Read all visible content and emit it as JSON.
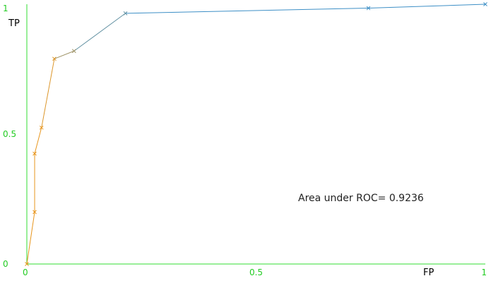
{
  "colors": {
    "axis": "#33dd33",
    "tick_text": "#22cc22",
    "series_low": "#e8961e",
    "series_high": "#3d8fc6",
    "background": "#ffffff"
  },
  "chart_data": {
    "type": "line",
    "xlabel": "FP",
    "ylabel": "TP",
    "xlim": [
      0,
      1
    ],
    "ylim": [
      0,
      1
    ],
    "x_ticks": [
      {
        "value": 0,
        "label": "0"
      },
      {
        "value": 0.5,
        "label": "0.5"
      },
      {
        "value": 1,
        "label": "1"
      }
    ],
    "y_ticks": [
      {
        "value": 0,
        "label": "0"
      },
      {
        "value": 0.5,
        "label": "0.5"
      },
      {
        "value": 1,
        "label": "1"
      }
    ],
    "grid": false,
    "marker": "x",
    "points": [
      {
        "x": 0.0,
        "y": 0.0
      },
      {
        "x": 0.017,
        "y": 0.2
      },
      {
        "x": 0.017,
        "y": 0.425
      },
      {
        "x": 0.032,
        "y": 0.525
      },
      {
        "x": 0.06,
        "y": 0.79
      },
      {
        "x": 0.103,
        "y": 0.82
      },
      {
        "x": 0.215,
        "y": 0.965
      },
      {
        "x": 0.745,
        "y": 0.985
      },
      {
        "x": 1.0,
        "y": 1.0
      }
    ],
    "annotation": "Area under ROC= 0.9236"
  }
}
